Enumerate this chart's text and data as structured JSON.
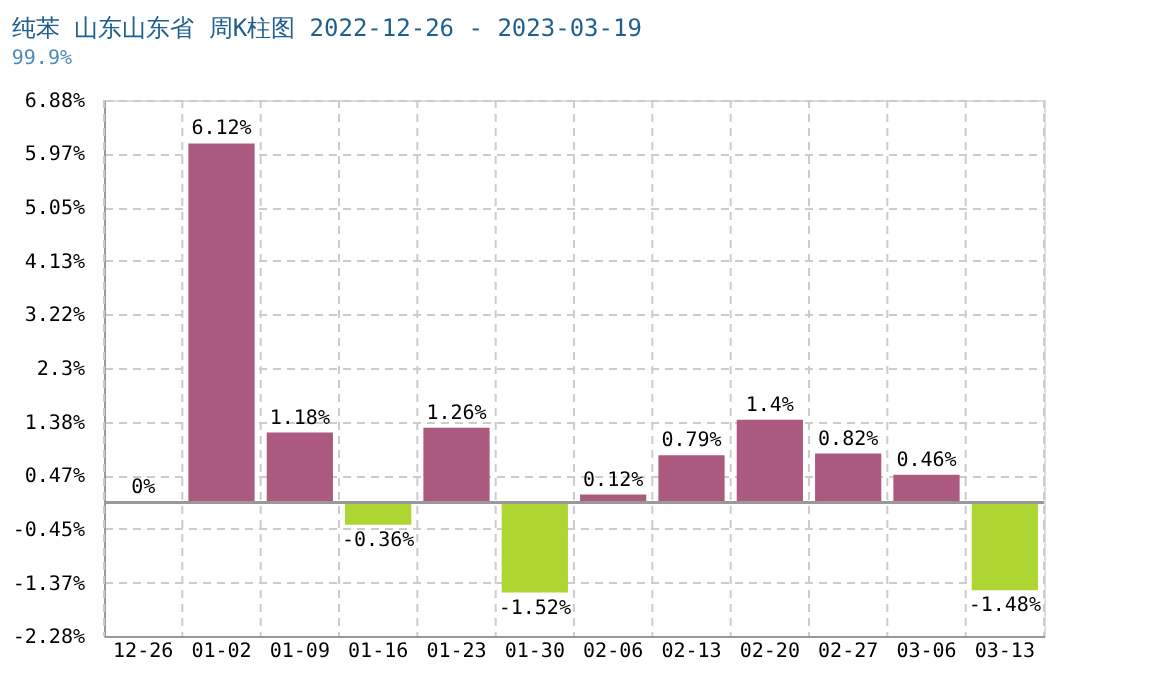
{
  "chart_data": {
    "type": "bar",
    "title": "纯苯 山东山东省 周K柱图 2022-12-26 - 2023-03-19",
    "subtitle": "99.9%",
    "categories": [
      "12-26",
      "01-02",
      "01-09",
      "01-16",
      "01-23",
      "01-30",
      "02-06",
      "02-13",
      "02-20",
      "02-27",
      "03-06",
      "03-13"
    ],
    "values": [
      0,
      6.12,
      1.18,
      -0.36,
      1.26,
      -1.52,
      0.12,
      0.79,
      1.4,
      0.82,
      0.46,
      -1.48
    ],
    "colors": [
      "#ad5a80",
      "#ad5a80",
      "#ad5a80",
      "#add633",
      "#ad5a80",
      "#add633",
      "#ad5a80",
      "#ad5a80",
      "#ad5a80",
      "#ad5a80",
      "#ad5a80",
      "#add633"
    ],
    "value_labels": [
      "0%",
      "6.12%",
      "1.18%",
      "-0.36%",
      "1.26%",
      "-1.52%",
      "0.12%",
      "0.79%",
      "1.4%",
      "0.82%",
      "0.46%",
      "-1.48%"
    ],
    "ylim": [
      -2.28,
      6.88
    ],
    "yticks": [
      {
        "value": 6.88,
        "label": "6.88%"
      },
      {
        "value": 5.97,
        "label": "5.97%"
      },
      {
        "value": 5.05,
        "label": "5.05%"
      },
      {
        "value": 4.13,
        "label": "4.13%"
      },
      {
        "value": 3.22,
        "label": "3.22%"
      },
      {
        "value": 2.3,
        "label": "2.3%"
      },
      {
        "value": 1.38,
        "label": "1.38%"
      },
      {
        "value": 0.47,
        "label": "0.47%"
      },
      {
        "value": -0.45,
        "label": "-0.45%"
      },
      {
        "value": -1.37,
        "label": "-1.37%"
      },
      {
        "value": -2.28,
        "label": "-2.28%"
      }
    ],
    "ref_lines": [
      {
        "axis": "y",
        "value": 0,
        "color": "#999999"
      }
    ],
    "grid": true
  }
}
